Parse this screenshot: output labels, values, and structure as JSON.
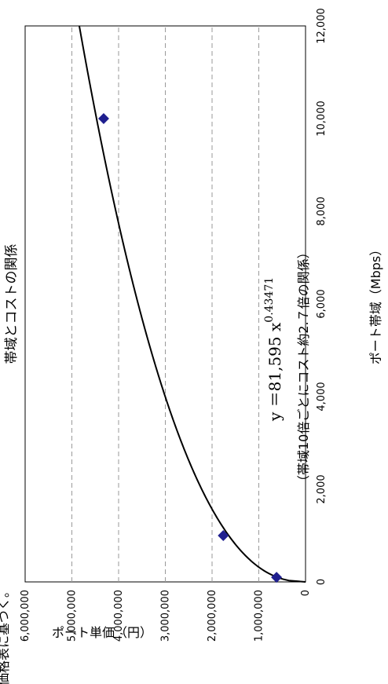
{
  "chart_data": {
    "type": "scatter",
    "title": "帯域とコストの関係",
    "xlabel": "ポート帯域（Mbps）",
    "ylabel": "ポート単価（円）",
    "xlim": [
      0,
      12000
    ],
    "ylim": [
      0,
      6000000
    ],
    "x_ticks": [
      "0",
      "2,000",
      "4,000",
      "6,000",
      "8,000",
      "10,000",
      "12,000"
    ],
    "y_ticks": [
      "0",
      "1,000,000",
      "2,000,000",
      "3,000,000",
      "4,000,000",
      "5,000,000",
      "6,000,000"
    ],
    "grid": "horizontal-dashed",
    "points": [
      {
        "x": 100,
        "y": 620000
      },
      {
        "x": 1000,
        "y": 1760000
      },
      {
        "x": 10000,
        "y": 4320000
      }
    ],
    "marker_color": "#1f1f8f",
    "trendline": {
      "type": "power",
      "coefficient": 81595,
      "exponent": 0.43471
    },
    "equation": {
      "main": "y ＝81,595 x",
      "exponent": "0.43471"
    },
    "annotation": "（帯域10倍ごとにコスト約2.７倍の関係）"
  },
  "footnote": "価格表に基づく。"
}
